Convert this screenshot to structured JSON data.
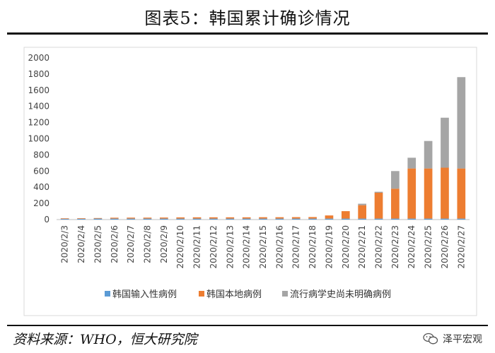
{
  "figure": {
    "title": "图表5：韩国累计确诊情况",
    "source": "资料来源：WHO，恒大研究院",
    "watermark": "泽平宏观"
  },
  "chart_data": {
    "type": "bar",
    "stacked": true,
    "categories": [
      "2020/2/3",
      "2020/2/4",
      "2020/2/5",
      "2020/2/6",
      "2020/2/7",
      "2020/2/8",
      "2020/2/9",
      "2020/2/10",
      "2020/2/11",
      "2020/2/12",
      "2020/2/13",
      "2020/2/14",
      "2020/2/15",
      "2020/2/16",
      "2020/2/17",
      "2020/2/18",
      "2020/2/19",
      "2020/2/20",
      "2020/2/21",
      "2020/2/22",
      "2020/2/23",
      "2020/2/24",
      "2020/2/25",
      "2020/2/26",
      "2020/2/27"
    ],
    "series": [
      {
        "name": "韩国输入性病例",
        "color": "#5B9BD5",
        "values": [
          11,
          11,
          12,
          12,
          12,
          12,
          12,
          12,
          12,
          12,
          12,
          12,
          12,
          12,
          12,
          12,
          12,
          12,
          12,
          12,
          12,
          12,
          12,
          12,
          12
        ]
      },
      {
        "name": "韩国本地病例",
        "color": "#ED7D31",
        "values": [
          4,
          5,
          7,
          11,
          12,
          12,
          13,
          15,
          16,
          16,
          16,
          16,
          17,
          17,
          18,
          19,
          39,
          92,
          166,
          320,
          370,
          620,
          620,
          630,
          620
        ]
      },
      {
        "name": "流行病学史尚未明确病例",
        "color": "#A5A5A5",
        "values": [
          0,
          0,
          0,
          0,
          0,
          0,
          0,
          0,
          0,
          0,
          0,
          0,
          0,
          0,
          0,
          0,
          0,
          0,
          18,
          12,
          218,
          133,
          340,
          618,
          1130
        ]
      }
    ],
    "ylim": [
      0,
      2000
    ],
    "yticks": [
      0,
      200,
      400,
      600,
      800,
      1000,
      1200,
      1400,
      1600,
      1800,
      2000
    ],
    "grid": false,
    "legend": "bottom"
  }
}
